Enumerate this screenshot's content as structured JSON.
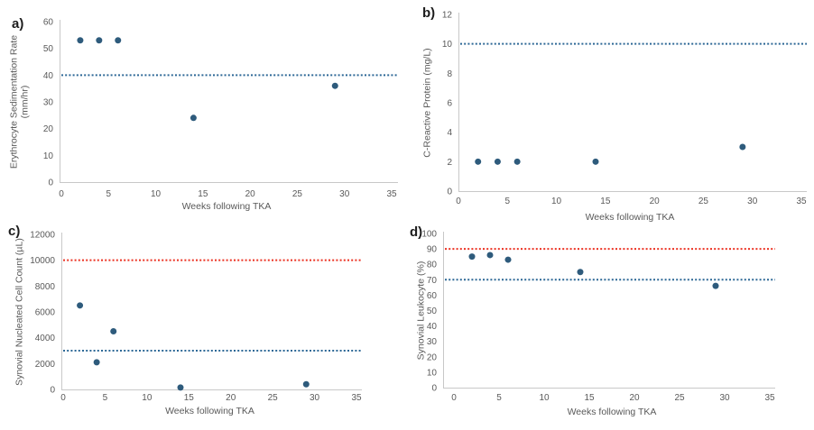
{
  "figure": {
    "description": "Four-panel scatter figure of inflammatory markers over weeks following TKA",
    "x_axis_title": "Weeks following TKA"
  },
  "colors": {
    "point": "#2e5b7c",
    "ref_blue": "#2d6896",
    "ref_red": "#eb3223",
    "axis": "#c8c8c8",
    "tick_text": "#595959",
    "panel_label": "#1c1c1c",
    "background": "#ffffff"
  },
  "chart_data": [
    {
      "panel_label": "a)",
      "type": "scatter",
      "xlabel": "Weeks following TKA",
      "ylabel": "Erythrocyte Sedimentation Rate\n(mm/hr)",
      "xlim": [
        0,
        35
      ],
      "ylim": [
        0,
        60
      ],
      "xticks": [
        0,
        5,
        10,
        15,
        20,
        25,
        30,
        35
      ],
      "yticks": [
        0,
        10,
        20,
        30,
        40,
        50,
        60
      ],
      "points": {
        "x": [
          2,
          4,
          6,
          14,
          29
        ],
        "y": [
          53,
          53,
          53,
          24,
          36
        ]
      },
      "ref_lines": [
        {
          "value": 40,
          "color_key": "ref_blue",
          "style": "dotted"
        }
      ],
      "grid": false,
      "legend": false
    },
    {
      "panel_label": "b)",
      "type": "scatter",
      "xlabel": "Weeks following TKA",
      "ylabel": "C-Reactive Protein (mg/L)",
      "xlim": [
        0,
        35
      ],
      "ylim": [
        0,
        12
      ],
      "xticks": [
        0,
        5,
        10,
        15,
        20,
        25,
        30,
        35
      ],
      "yticks": [
        0,
        2,
        4,
        6,
        8,
        10,
        12
      ],
      "points": {
        "x": [
          2,
          4,
          6,
          14,
          29
        ],
        "y": [
          2,
          2,
          2,
          2,
          3
        ]
      },
      "ref_lines": [
        {
          "value": 10,
          "color_key": "ref_blue",
          "style": "dotted"
        }
      ],
      "grid": false,
      "legend": false
    },
    {
      "panel_label": "c)",
      "type": "scatter",
      "xlabel": "Weeks following TKA",
      "ylabel": "Synovial Nucleated Cell Count (µL)",
      "xlim": [
        0,
        35
      ],
      "ylim": [
        0,
        12000
      ],
      "xticks": [
        0,
        5,
        10,
        15,
        20,
        25,
        30,
        35
      ],
      "yticks": [
        0,
        2000,
        4000,
        6000,
        8000,
        10000,
        12000
      ],
      "points": {
        "x": [
          2,
          4,
          6,
          14,
          29
        ],
        "y": [
          6500,
          2100,
          4500,
          150,
          400
        ]
      },
      "ref_lines": [
        {
          "value": 10000,
          "color_key": "ref_red",
          "style": "dotted"
        },
        {
          "value": 3000,
          "color_key": "ref_blue",
          "style": "dotted"
        }
      ],
      "grid": false,
      "legend": false
    },
    {
      "panel_label": "d)",
      "type": "scatter",
      "xlabel": "Weeks following TKA",
      "ylabel": "Synovial Leukocyte (%)",
      "xlim": [
        0,
        35
      ],
      "ylim": [
        0,
        100
      ],
      "xticks": [
        0,
        5,
        10,
        15,
        20,
        25,
        30,
        35
      ],
      "yticks": [
        0,
        10,
        20,
        30,
        40,
        50,
        60,
        70,
        80,
        90,
        100
      ],
      "points": {
        "x": [
          2,
          4,
          6,
          14,
          29
        ],
        "y": [
          85,
          86,
          83,
          75,
          66
        ]
      },
      "ref_lines": [
        {
          "value": 90,
          "color_key": "ref_red",
          "style": "dotted"
        },
        {
          "value": 70,
          "color_key": "ref_blue",
          "style": "dotted"
        }
      ],
      "grid": false,
      "legend": false
    }
  ]
}
